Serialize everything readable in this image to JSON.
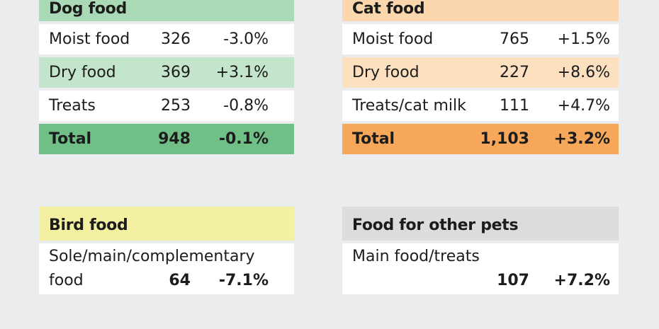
{
  "dog": {
    "title": "Dog food",
    "rows": [
      {
        "label": "Moist food",
        "value": "326",
        "change": "-3.0%"
      },
      {
        "label": "Dry food",
        "value": "369",
        "change": "+3.1%"
      },
      {
        "label": "Treats",
        "value": "253",
        "change": "-0.8%"
      },
      {
        "label": "Total",
        "value": "948",
        "change": "-0.1%"
      }
    ]
  },
  "cat": {
    "title": "Cat food",
    "rows": [
      {
        "label": "Moist food",
        "value": "765",
        "change": "+1.5%"
      },
      {
        "label": "Dry food",
        "value": "227",
        "change": "+8.6%"
      },
      {
        "label": "Treats/cat milk",
        "value": "111",
        "change": "+4.7%"
      },
      {
        "label": "Total",
        "value": "1,103",
        "change": "+3.2%"
      }
    ]
  },
  "bird": {
    "title": "Bird food",
    "label_line1": "Sole/main/complementary",
    "label_line2": "food",
    "value": "64",
    "change": "-7.1%"
  },
  "other": {
    "title": "Food for other pets",
    "label_line1": "Main food/treats",
    "value": "107",
    "change": "+7.2%"
  },
  "colors": {
    "dog_header": "#a9d9b5",
    "dog_total": "#6fbf86",
    "cat_header": "#fcd7ae",
    "cat_total": "#f7a75a",
    "bird_header": "#f4f0a2",
    "other_header": "#dcdcdc",
    "background": "#ebeced"
  }
}
